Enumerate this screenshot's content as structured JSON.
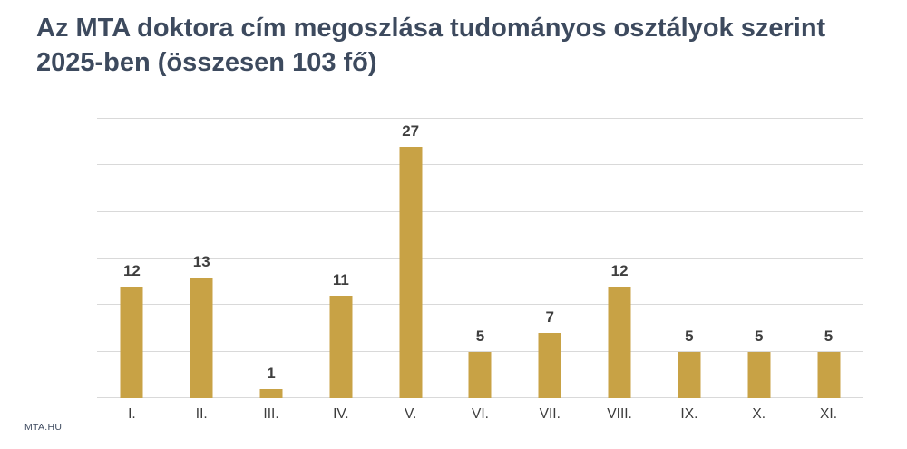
{
  "title": {
    "line1": "Az MTA doktora cím megoszlása tudományos osztályok szerint",
    "line2": "2025-ben (összesen 103 fő)",
    "full": "Az MTA doktora cím megoszlása tudományos osztályok szerint 2025-ben (összesen 103 fő)"
  },
  "footer": {
    "watermark": "MTA.HU"
  },
  "colors": {
    "bar": "#C8A245",
    "gridline": "#D9D9D9",
    "title_text": "#3D4A5E",
    "label_text": "#3F3F3F",
    "background": "#FFFFFF"
  },
  "chart_data": {
    "type": "bar",
    "title": "Az MTA doktora cím megoszlása tudományos osztályok szerint 2025-ben (összesen 103 fő)",
    "categories": [
      "I.",
      "II.",
      "III.",
      "IV.",
      "V.",
      "VI.",
      "VII.",
      "VIII.",
      "IX.",
      "X.",
      "XI."
    ],
    "values": [
      12,
      13,
      1,
      11,
      27,
      5,
      7,
      12,
      5,
      5,
      5
    ],
    "total": 103,
    "xlabel": "",
    "ylabel": "",
    "ylim": [
      0,
      30
    ],
    "grid_step": 5,
    "grid": true,
    "legend": false,
    "y_axis_labels_visible": false,
    "data_labels": true,
    "bar_color": "#C8A245"
  }
}
